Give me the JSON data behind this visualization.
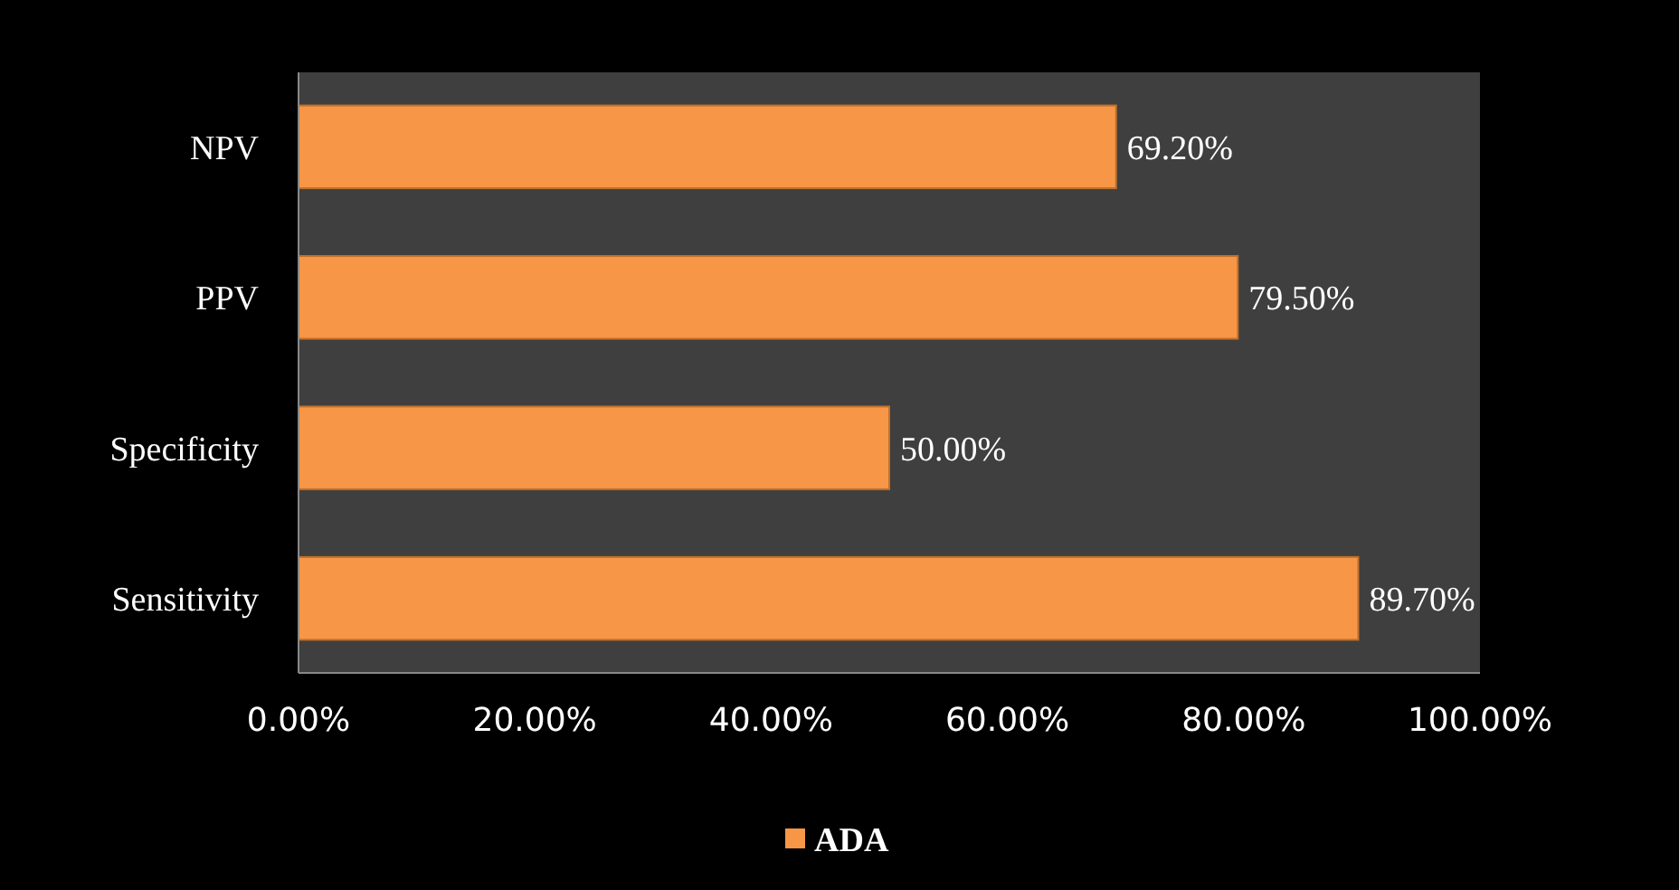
{
  "chart_data": {
    "type": "bar",
    "orientation": "horizontal",
    "categories": [
      "NPV",
      "PPV",
      "Specificity",
      "Sensitivity"
    ],
    "series": [
      {
        "name": "ADA",
        "color": "#f79646",
        "values": [
          69.2,
          79.5,
          50.0,
          89.7
        ],
        "value_labels": [
          "69.20%",
          "79.50%",
          "50.00%",
          "89.70%"
        ]
      }
    ],
    "xlim": [
      0,
      100
    ],
    "xticks": [
      {
        "value": 0,
        "label": "0.00%"
      },
      {
        "value": 20,
        "label": "20.00%"
      },
      {
        "value": 40,
        "label": "40.00%"
      },
      {
        "value": 60,
        "label": "60.00%"
      },
      {
        "value": 80,
        "label": "80.00%"
      },
      {
        "value": 100,
        "label": "100.00%"
      }
    ],
    "grid": false,
    "legend": "bottom"
  }
}
